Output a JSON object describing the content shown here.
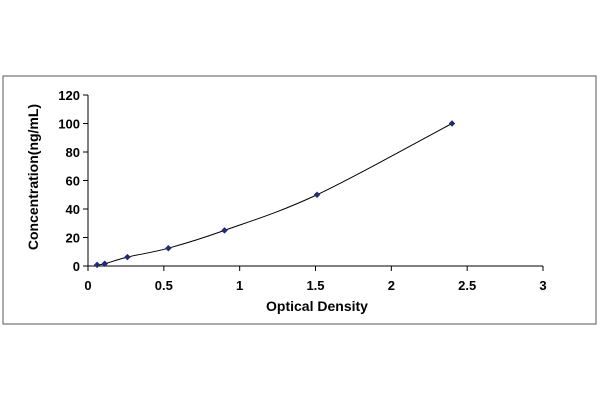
{
  "chart_data": {
    "type": "scatter",
    "title": "",
    "xlabel": "Optical Density",
    "ylabel": "Concentration(ng/mL)",
    "xlim": [
      0,
      3
    ],
    "ylim": [
      0,
      120
    ],
    "xticks": [
      "0",
      "0.5",
      "1",
      "1.5",
      "2",
      "2.5",
      "3"
    ],
    "yticks": [
      "0",
      "20",
      "40",
      "60",
      "80",
      "100",
      "120"
    ],
    "grid": false,
    "legend": "none",
    "marker_color": "#1f2a7a",
    "line_color": "#000000",
    "series": [
      {
        "x": [
          0.06,
          0.11,
          0.26,
          0.53,
          0.9,
          1.51,
          2.4
        ],
        "y": [
          0.78,
          1.56,
          6.25,
          12.5,
          25,
          50,
          100
        ],
        "trendline": "smooth"
      }
    ]
  }
}
